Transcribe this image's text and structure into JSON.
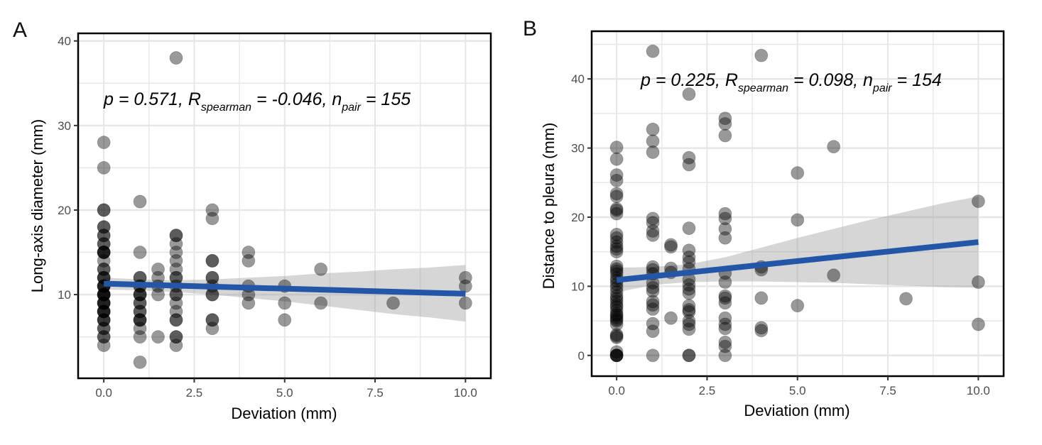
{
  "figure": {
    "panels": [
      "A",
      "B"
    ]
  },
  "chart_data": [
    {
      "type": "scatter",
      "panel_label": "A",
      "title": "",
      "xlabel": "Deviation (mm)",
      "ylabel": "Long-axis diameter (mm)",
      "xlim": [
        -0.71,
        10.7
      ],
      "ylim": [
        0.1,
        40.9
      ],
      "xticks": [
        0.0,
        2.5,
        5.0,
        7.5,
        10.0
      ],
      "xtick_labels": [
        "0.0",
        "2.5",
        "5.0",
        "7.5",
        "10.0"
      ],
      "yticks": [
        10,
        20,
        30,
        40
      ],
      "ytick_labels": [
        "10",
        "20",
        "30",
        "40"
      ],
      "grid": true,
      "annotation": {
        "p_prefix": "p = 0.571, R",
        "r_sub": "spearman",
        "r_mid": " = -0.046, n",
        "n_sub": "pair",
        "n_suffix": " = 155"
      },
      "point_color": "#000000",
      "point_alpha": 0.4,
      "fit_line": {
        "color": "#2456a8",
        "x": [
          0,
          10
        ],
        "y": [
          11.3,
          10.1
        ]
      },
      "confidence_band": {
        "color": "#999999",
        "alpha": 0.4,
        "x": [
          0,
          1,
          2,
          3,
          4,
          5,
          6,
          7,
          8,
          9,
          10
        ],
        "upper": [
          12.0,
          11.8,
          11.7,
          11.8,
          12.0,
          12.2,
          12.5,
          12.7,
          13.0,
          13.2,
          13.5
        ],
        "lower": [
          10.6,
          10.5,
          10.3,
          10.0,
          9.6,
          9.2,
          8.7,
          8.2,
          7.7,
          7.3,
          6.8
        ]
      },
      "points": [
        [
          0,
          4
        ],
        [
          0,
          5
        ],
        [
          0,
          5
        ],
        [
          0,
          6
        ],
        [
          0,
          6
        ],
        [
          0,
          7
        ],
        [
          0,
          7
        ],
        [
          0,
          7
        ],
        [
          0,
          8
        ],
        [
          0,
          8
        ],
        [
          0,
          8
        ],
        [
          0,
          8
        ],
        [
          0,
          9
        ],
        [
          0,
          9
        ],
        [
          0,
          9
        ],
        [
          0,
          9
        ],
        [
          0,
          10
        ],
        [
          0,
          10
        ],
        [
          0,
          10
        ],
        [
          0,
          10
        ],
        [
          0,
          10
        ],
        [
          0,
          11
        ],
        [
          0,
          11
        ],
        [
          0,
          11
        ],
        [
          0,
          11
        ],
        [
          0,
          12
        ],
        [
          0,
          12
        ],
        [
          0,
          12
        ],
        [
          0,
          13
        ],
        [
          0,
          13
        ],
        [
          0,
          14
        ],
        [
          0,
          15
        ],
        [
          0,
          15
        ],
        [
          0,
          15
        ],
        [
          0,
          15
        ],
        [
          0,
          16
        ],
        [
          0,
          16
        ],
        [
          0,
          17
        ],
        [
          0,
          17
        ],
        [
          0,
          18
        ],
        [
          0,
          18
        ],
        [
          0,
          20
        ],
        [
          0,
          20
        ],
        [
          0,
          25
        ],
        [
          0,
          28
        ],
        [
          1,
          2
        ],
        [
          1,
          5
        ],
        [
          1,
          6
        ],
        [
          1,
          7
        ],
        [
          1,
          7
        ],
        [
          1,
          7
        ],
        [
          1,
          8
        ],
        [
          1,
          8
        ],
        [
          1,
          9
        ],
        [
          1,
          9
        ],
        [
          1,
          10
        ],
        [
          1,
          10
        ],
        [
          1,
          10
        ],
        [
          1,
          11
        ],
        [
          1,
          11
        ],
        [
          1,
          12
        ],
        [
          1,
          12
        ],
        [
          1,
          15
        ],
        [
          1,
          21
        ],
        [
          1.5,
          5
        ],
        [
          1.5,
          10
        ],
        [
          1.5,
          11
        ],
        [
          1.5,
          12
        ],
        [
          1.5,
          13
        ],
        [
          2,
          4
        ],
        [
          2,
          5
        ],
        [
          2,
          5
        ],
        [
          2,
          7
        ],
        [
          2,
          7
        ],
        [
          2,
          8
        ],
        [
          2,
          9
        ],
        [
          2,
          10
        ],
        [
          2,
          10
        ],
        [
          2,
          11
        ],
        [
          2,
          12
        ],
        [
          2,
          12
        ],
        [
          2,
          13
        ],
        [
          2,
          14
        ],
        [
          2,
          15
        ],
        [
          2,
          16
        ],
        [
          2,
          17
        ],
        [
          2,
          17
        ],
        [
          2,
          38
        ],
        [
          3,
          6
        ],
        [
          3,
          7
        ],
        [
          3,
          7
        ],
        [
          3,
          10
        ],
        [
          3,
          10
        ],
        [
          3,
          11
        ],
        [
          3,
          12
        ],
        [
          3,
          12
        ],
        [
          3,
          14
        ],
        [
          3,
          14
        ],
        [
          3,
          19
        ],
        [
          3,
          20
        ],
        [
          4,
          9
        ],
        [
          4,
          10
        ],
        [
          4,
          11
        ],
        [
          4,
          14
        ],
        [
          4,
          15
        ],
        [
          5,
          7
        ],
        [
          5,
          9
        ],
        [
          5,
          11
        ],
        [
          6,
          9
        ],
        [
          6,
          13
        ],
        [
          8,
          9
        ],
        [
          10,
          9
        ],
        [
          10,
          11
        ],
        [
          10,
          12
        ]
      ]
    },
    {
      "type": "scatter",
      "panel_label": "B",
      "title": "",
      "xlabel": "Deviation (mm)",
      "ylabel": "Distance to pleura (mm)",
      "xlim": [
        -0.69,
        10.7
      ],
      "ylim": [
        -3.0,
        46.9
      ],
      "xticks": [
        0.0,
        2.5,
        5.0,
        7.5,
        10.0
      ],
      "xtick_labels": [
        "0.0",
        "2.5",
        "5.0",
        "7.5",
        "10.0"
      ],
      "yticks": [
        0,
        10,
        20,
        30,
        40
      ],
      "ytick_labels": [
        "0",
        "10",
        "20",
        "30",
        "40"
      ],
      "grid": true,
      "annotation": {
        "p_prefix": "p = 0.225, R",
        "r_sub": "spearman",
        "r_mid": " = 0.098, n",
        "n_sub": "pair",
        "n_suffix": " = 154"
      },
      "point_color": "#000000",
      "point_alpha": 0.4,
      "fit_line": {
        "color": "#2456a8",
        "x": [
          0,
          10
        ],
        "y": [
          10.9,
          16.4
        ]
      },
      "confidence_band": {
        "color": "#999999",
        "alpha": 0.4,
        "x": [
          0,
          1,
          2,
          3,
          4,
          5,
          6,
          7,
          8,
          9,
          10
        ],
        "upper": [
          12.7,
          12.8,
          13.2,
          14.2,
          15.6,
          17.0,
          18.3,
          19.6,
          20.8,
          22.0,
          23.0
        ],
        "lower": [
          9.1,
          10.2,
          10.6,
          10.7,
          10.7,
          10.6,
          10.5,
          10.3,
          10.1,
          9.9,
          9.8
        ]
      },
      "points": [
        [
          0,
          0
        ],
        [
          0,
          0
        ],
        [
          0,
          0
        ],
        [
          0,
          0
        ],
        [
          0,
          0.5
        ],
        [
          0,
          2.6
        ],
        [
          0,
          2.8
        ],
        [
          0,
          3.0
        ],
        [
          0,
          4.5
        ],
        [
          0,
          5.0
        ],
        [
          0,
          5.2
        ],
        [
          0,
          5.5
        ],
        [
          0,
          5.8
        ],
        [
          0,
          6.0
        ],
        [
          0,
          6.5
        ],
        [
          0,
          7.0
        ],
        [
          0,
          7.3
        ],
        [
          0,
          7.8
        ],
        [
          0,
          8.2
        ],
        [
          0,
          8.6
        ],
        [
          0,
          9.2
        ],
        [
          0,
          9.8
        ],
        [
          0,
          10.3
        ],
        [
          0,
          10.8
        ],
        [
          0,
          11.2
        ],
        [
          0,
          11.8
        ],
        [
          0,
          12.2
        ],
        [
          0,
          12.5
        ],
        [
          0,
          12.9
        ],
        [
          0,
          15.0
        ],
        [
          0,
          15.4
        ],
        [
          0,
          15.8
        ],
        [
          0,
          16.4
        ],
        [
          0,
          17.0
        ],
        [
          0,
          17.5
        ],
        [
          0,
          20.5
        ],
        [
          0,
          21.0
        ],
        [
          0,
          21.2
        ],
        [
          0,
          23.0
        ],
        [
          0,
          23.4
        ],
        [
          0,
          25.3
        ],
        [
          0,
          26.1
        ],
        [
          0,
          28.4
        ],
        [
          0,
          30.1
        ],
        [
          1,
          0
        ],
        [
          1,
          3.5
        ],
        [
          1,
          4.6
        ],
        [
          1,
          6.7
        ],
        [
          1,
          7.3
        ],
        [
          1,
          7.8
        ],
        [
          1,
          9.3
        ],
        [
          1,
          9.8
        ],
        [
          1,
          10.5
        ],
        [
          1,
          11.8
        ],
        [
          1,
          12.4
        ],
        [
          1,
          12.8
        ],
        [
          1,
          17.4
        ],
        [
          1,
          18.0
        ],
        [
          1,
          19.2
        ],
        [
          1,
          19.8
        ],
        [
          1,
          29.4
        ],
        [
          1,
          31.0
        ],
        [
          1,
          32.7
        ],
        [
          1,
          44.0
        ],
        [
          1.5,
          5.4
        ],
        [
          1.5,
          12.0
        ],
        [
          1.5,
          12.6
        ],
        [
          1.5,
          15.7
        ],
        [
          1.5,
          16.0
        ],
        [
          2,
          0
        ],
        [
          2,
          0
        ],
        [
          2,
          3.8
        ],
        [
          2,
          4.5
        ],
        [
          2,
          5.0
        ],
        [
          2,
          6.3
        ],
        [
          2,
          6.6
        ],
        [
          2,
          7.2
        ],
        [
          2,
          9.0
        ],
        [
          2,
          9.6
        ],
        [
          2,
          10.2
        ],
        [
          2,
          11.0
        ],
        [
          2,
          12.5
        ],
        [
          2,
          13.5
        ],
        [
          2,
          14.2
        ],
        [
          2,
          15.2
        ],
        [
          2,
          18.4
        ],
        [
          2,
          27.6
        ],
        [
          2,
          28.6
        ],
        [
          2,
          37.8
        ],
        [
          3,
          0
        ],
        [
          3,
          1.3
        ],
        [
          3,
          1.9
        ],
        [
          3,
          3.9
        ],
        [
          3,
          4.5
        ],
        [
          3,
          5.4
        ],
        [
          3,
          7.6
        ],
        [
          3,
          8.3
        ],
        [
          3,
          8.6
        ],
        [
          3,
          10.6
        ],
        [
          3,
          11.9
        ],
        [
          3,
          17.0
        ],
        [
          3,
          18.3
        ],
        [
          3,
          19.8
        ],
        [
          3,
          20.5
        ],
        [
          3,
          31.8
        ],
        [
          3,
          33.5
        ],
        [
          3,
          34.3
        ],
        [
          4,
          3.6
        ],
        [
          4,
          4.0
        ],
        [
          4,
          8.3
        ],
        [
          4,
          12.4
        ],
        [
          4,
          12.8
        ],
        [
          4,
          43.4
        ],
        [
          5,
          7.2
        ],
        [
          5,
          19.6
        ],
        [
          5,
          26.4
        ],
        [
          6,
          11.6
        ],
        [
          6,
          30.2
        ],
        [
          8,
          8.2
        ],
        [
          10,
          4.5
        ],
        [
          10,
          10.6
        ],
        [
          10,
          22.3
        ]
      ]
    }
  ]
}
